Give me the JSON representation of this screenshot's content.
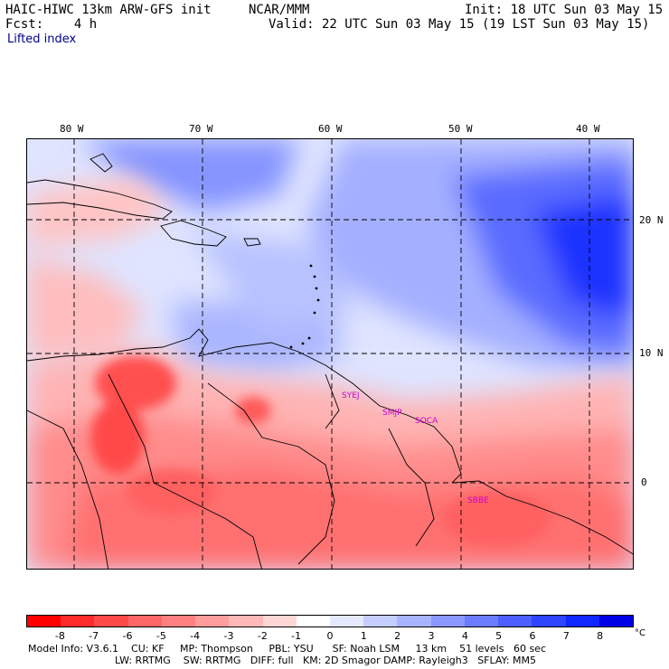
{
  "header": {
    "model_title": "HAIC-HIWC 13km ARW-GFS init",
    "org": "NCAR/MMM",
    "init": "Init: 18 UTC Sun 03 May 15",
    "fcst": "Fcst:    4 h",
    "valid": "Valid: 22 UTC Sun 03 May 15 (19 LST Sun 03 May 15)",
    "field": "Lifted index"
  },
  "map": {
    "lon_labels": [
      "80 W",
      "70 W",
      "60 W",
      "50 W",
      "40 W"
    ],
    "lat_labels": [
      "20 N",
      "10 N",
      "0"
    ],
    "stations": [
      "SYEJ",
      "SMJP",
      "SOCA",
      "SBBE"
    ]
  },
  "colorbar": {
    "colors": [
      "#ff0000",
      "#ff2b2b",
      "#ff4a4a",
      "#ff6666",
      "#ff8080",
      "#ff9c9c",
      "#ffb8b8",
      "#ffd6d6",
      "#ffffff",
      "#e6eaff",
      "#c6ceff",
      "#a8b4ff",
      "#8a98ff",
      "#6b7cff",
      "#4d60ff",
      "#2e44ff",
      "#1028ff",
      "#0000e6"
    ],
    "ticks": [
      "-8",
      "-7",
      "-6",
      "-5",
      "-4",
      "-3",
      "-2",
      "-1",
      "0",
      "1",
      "2",
      "3",
      "4",
      "5",
      "6",
      "7",
      "8"
    ],
    "unit": "°C"
  },
  "footer": {
    "line1": "Model Info: V3.6.1    CU: KF     MP: Thompson     PBL: YSU      SF: Noah LSM     13 km    51 levels   60 sec",
    "line2": "LW: RRTMG    SW: RRTMG   DIFF: full   KM: 2D Smagor DAMP: Rayleigh3   SFLAY: MM5"
  }
}
